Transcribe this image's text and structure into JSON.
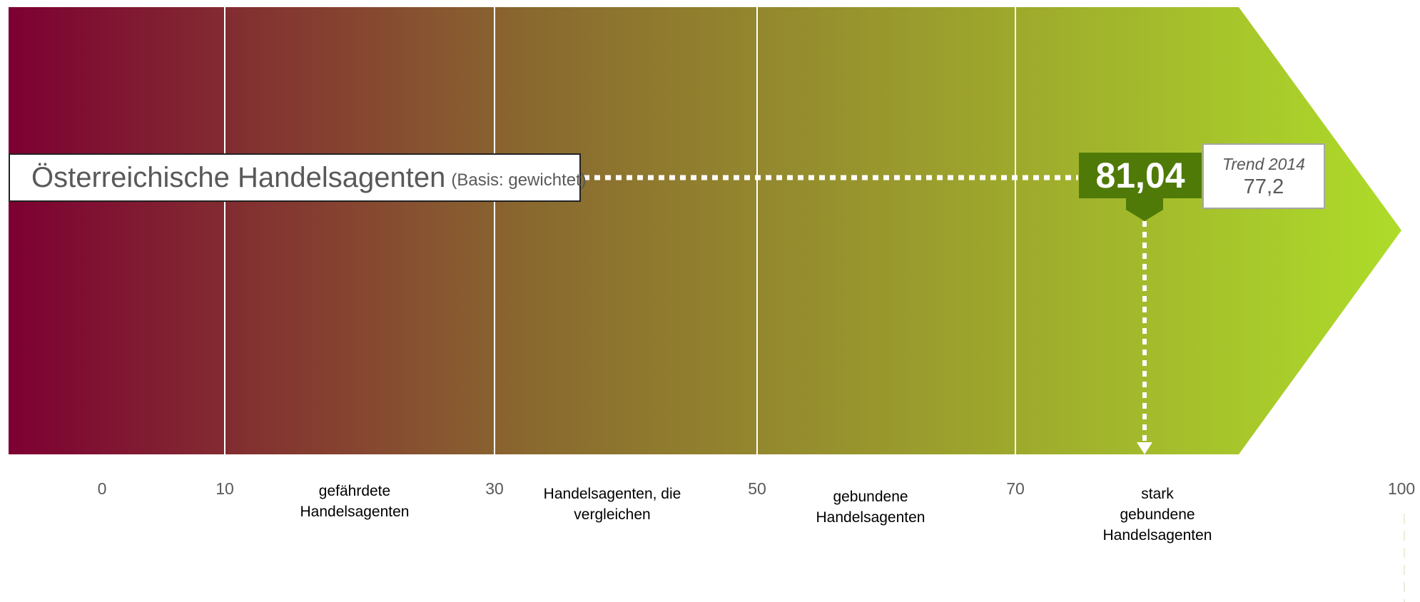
{
  "chart_data": {
    "type": "scale",
    "subject": "Österreichische Handelsagenten",
    "basis": "(Basis: gewichtet)",
    "score": 81.04,
    "score_label": "81,04",
    "trend": {
      "label": "Trend 2014",
      "value": 77.2,
      "value_label": "77,2"
    },
    "ticks": [
      {
        "value": 0,
        "label": "0"
      },
      {
        "value": 10,
        "label": "10"
      },
      {
        "value": 30,
        "label": "30"
      },
      {
        "value": 50,
        "label": "50"
      },
      {
        "value": 70,
        "label": "70"
      },
      {
        "value": 100,
        "label": "100"
      }
    ],
    "boundaries": [
      10,
      30,
      50,
      70
    ],
    "zones": [
      {
        "label": "gefährdete\nHandelsagenten",
        "from": 10,
        "to": 30
      },
      {
        "label": "Handelsagenten, die\nvergleichen",
        "from": 30,
        "to": 50
      },
      {
        "label": "gebundene\nHandelsagenten",
        "from": 50,
        "to": 70
      },
      {
        "label": "stark\ngebundene\nHandelsagenten",
        "from": 70,
        "to": 100
      }
    ],
    "colors": {
      "start": "#7d0032",
      "mid": "#8a6a2f",
      "end": "#aedc2a",
      "score_box": "#4f7a07"
    }
  }
}
